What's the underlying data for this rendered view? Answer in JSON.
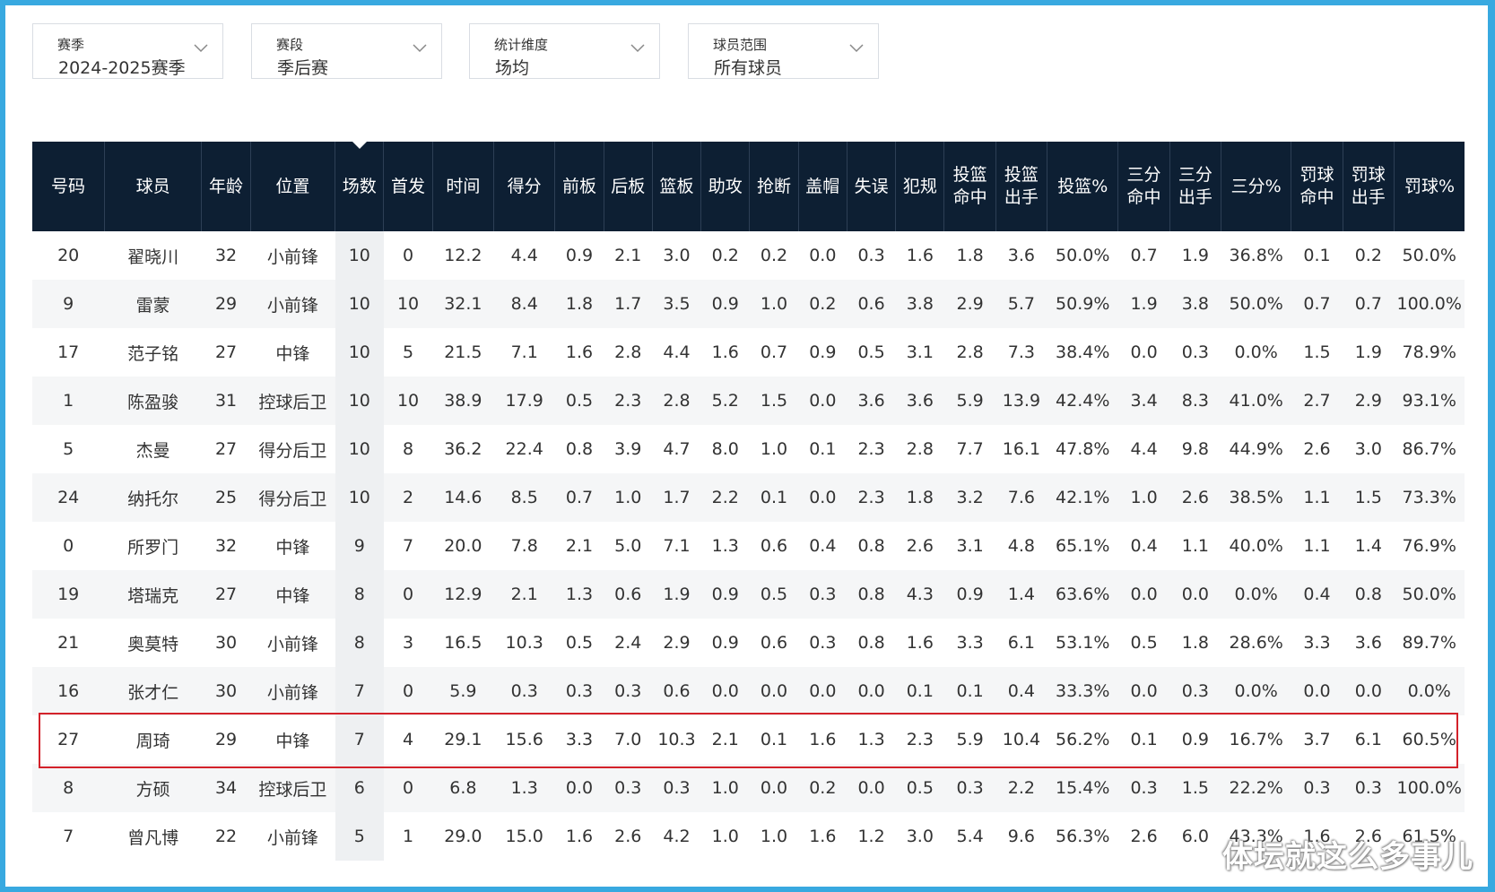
{
  "filters": [
    {
      "label": "赛季",
      "value": "2024-2025赛季"
    },
    {
      "label": "赛段",
      "value": "季后赛"
    },
    {
      "label": "统计维度",
      "value": "场均"
    },
    {
      "label": "球员范围",
      "value": "所有球员"
    }
  ],
  "table": {
    "headers": [
      "号码",
      "球员",
      "年龄",
      "位置",
      "场数",
      "首发",
      "时间",
      "得分",
      "前板",
      "后板",
      "篮板",
      "助攻",
      "抢断",
      "盖帽",
      "失误",
      "犯规",
      "投篮命中",
      "投篮出手",
      "投篮%",
      "三分命中",
      "三分出手",
      "三分%",
      "罚球命中",
      "罚球出手",
      "罚球%"
    ],
    "sorted_column": "场数",
    "rows": [
      [
        "20",
        "翟晓川",
        "32",
        "小前锋",
        "10",
        "0",
        "12.2",
        "4.4",
        "0.9",
        "2.1",
        "3.0",
        "0.2",
        "0.2",
        "0.0",
        "0.3",
        "1.6",
        "1.8",
        "3.6",
        "50.0%",
        "0.7",
        "1.9",
        "36.8%",
        "0.1",
        "0.2",
        "50.0%"
      ],
      [
        "9",
        "雷蒙",
        "29",
        "小前锋",
        "10",
        "10",
        "32.1",
        "8.4",
        "1.8",
        "1.7",
        "3.5",
        "0.9",
        "1.0",
        "0.2",
        "0.6",
        "3.8",
        "2.9",
        "5.7",
        "50.9%",
        "1.9",
        "3.8",
        "50.0%",
        "0.7",
        "0.7",
        "100.0%"
      ],
      [
        "17",
        "范子铭",
        "27",
        "中锋",
        "10",
        "5",
        "21.5",
        "7.1",
        "1.6",
        "2.8",
        "4.4",
        "1.6",
        "0.7",
        "0.9",
        "0.5",
        "3.1",
        "2.8",
        "7.3",
        "38.4%",
        "0.0",
        "0.3",
        "0.0%",
        "1.5",
        "1.9",
        "78.9%"
      ],
      [
        "1",
        "陈盈骏",
        "31",
        "控球后卫",
        "10",
        "10",
        "38.9",
        "17.9",
        "0.5",
        "2.3",
        "2.8",
        "5.2",
        "1.5",
        "0.0",
        "3.6",
        "3.6",
        "5.9",
        "13.9",
        "42.4%",
        "3.4",
        "8.3",
        "41.0%",
        "2.7",
        "2.9",
        "93.1%"
      ],
      [
        "5",
        "杰曼",
        "27",
        "得分后卫",
        "10",
        "8",
        "36.2",
        "22.4",
        "0.8",
        "3.9",
        "4.7",
        "8.0",
        "1.0",
        "0.1",
        "2.3",
        "2.8",
        "7.7",
        "16.1",
        "47.8%",
        "4.4",
        "9.8",
        "44.9%",
        "2.6",
        "3.0",
        "86.7%"
      ],
      [
        "24",
        "纳托尔",
        "25",
        "得分后卫",
        "10",
        "2",
        "14.6",
        "8.5",
        "0.7",
        "1.0",
        "1.7",
        "2.2",
        "0.1",
        "0.0",
        "2.3",
        "1.8",
        "3.2",
        "7.6",
        "42.1%",
        "1.0",
        "2.6",
        "38.5%",
        "1.1",
        "1.5",
        "73.3%"
      ],
      [
        "0",
        "所罗门",
        "32",
        "中锋",
        "9",
        "7",
        "20.0",
        "7.8",
        "2.1",
        "5.0",
        "7.1",
        "1.3",
        "0.6",
        "0.4",
        "0.8",
        "2.6",
        "3.1",
        "4.8",
        "65.1%",
        "0.4",
        "1.1",
        "40.0%",
        "1.1",
        "1.4",
        "76.9%"
      ],
      [
        "19",
        "塔瑞克",
        "27",
        "中锋",
        "8",
        "0",
        "12.9",
        "2.1",
        "1.3",
        "0.6",
        "1.9",
        "0.9",
        "0.5",
        "0.3",
        "0.8",
        "4.3",
        "0.9",
        "1.4",
        "63.6%",
        "0.0",
        "0.0",
        "0.0%",
        "0.4",
        "0.8",
        "50.0%"
      ],
      [
        "21",
        "奥莫特",
        "30",
        "小前锋",
        "8",
        "3",
        "16.5",
        "10.3",
        "0.5",
        "2.4",
        "2.9",
        "0.9",
        "0.6",
        "0.3",
        "0.8",
        "1.6",
        "3.3",
        "6.1",
        "53.1%",
        "0.5",
        "1.8",
        "28.6%",
        "3.3",
        "3.6",
        "89.7%"
      ],
      [
        "16",
        "张才仁",
        "30",
        "小前锋",
        "7",
        "0",
        "5.9",
        "0.3",
        "0.3",
        "0.3",
        "0.6",
        "0.0",
        "0.0",
        "0.0",
        "0.0",
        "0.1",
        "0.1",
        "0.4",
        "33.3%",
        "0.0",
        "0.3",
        "0.0%",
        "0.0",
        "0.0",
        "0.0%"
      ],
      [
        "27",
        "周琦",
        "29",
        "中锋",
        "7",
        "4",
        "29.1",
        "15.6",
        "3.3",
        "7.0",
        "10.3",
        "2.1",
        "0.1",
        "1.6",
        "1.3",
        "2.3",
        "5.9",
        "10.4",
        "56.2%",
        "0.1",
        "0.9",
        "16.7%",
        "3.7",
        "6.1",
        "60.5%"
      ],
      [
        "8",
        "方硕",
        "34",
        "控球后卫",
        "6",
        "0",
        "6.8",
        "1.3",
        "0.0",
        "0.3",
        "0.3",
        "1.0",
        "0.0",
        "0.2",
        "0.0",
        "0.5",
        "0.3",
        "2.2",
        "15.4%",
        "0.3",
        "1.5",
        "22.2%",
        "0.3",
        "0.3",
        "100.0%"
      ],
      [
        "7",
        "曾凡博",
        "22",
        "小前锋",
        "5",
        "1",
        "29.0",
        "15.0",
        "1.6",
        "2.6",
        "4.2",
        "1.0",
        "1.0",
        "1.6",
        "1.2",
        "3.0",
        "5.4",
        "9.6",
        "56.3%",
        "2.6",
        "6.0",
        "43.3%",
        "1.6",
        "2.6",
        "61.5%"
      ]
    ],
    "highlighted_row_player": "周琦"
  },
  "watermark": "体坛就这么多事儿",
  "colors": {
    "header_bg": "#0d1f33",
    "highlight_border": "#d3222a",
    "frame_border": "#38a9e0"
  }
}
